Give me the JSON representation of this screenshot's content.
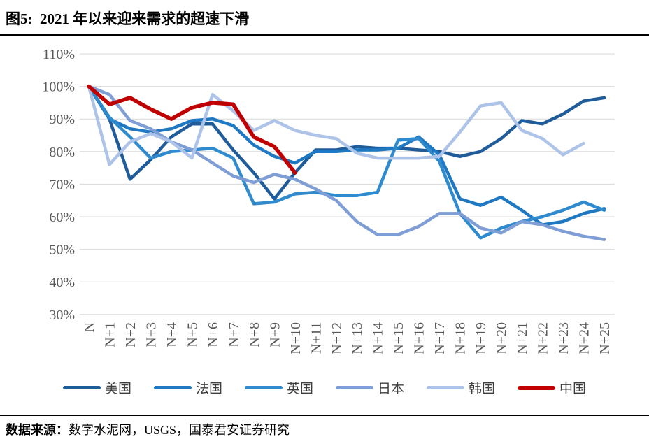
{
  "header": {
    "title": "图5:  2021 年以来迎来需求的超速下滑"
  },
  "footer": {
    "source_label": "数据来源：",
    "source_text": "数字水泥网，USGS，国泰君安证券研究"
  },
  "chart_data": {
    "type": "line",
    "title": "图5:  2021 年以来迎来需求的超速下滑",
    "x": [
      "N",
      "N+1",
      "N+2",
      "N+3",
      "N+4",
      "N+5",
      "N+6",
      "N+7",
      "N+8",
      "N+9",
      "N+10",
      "N+11",
      "N+12",
      "N+13",
      "N+14",
      "N+15",
      "N+16",
      "N+17",
      "N+18",
      "N+19",
      "N+20",
      "N+21",
      "N+22",
      "N+23",
      "N+24",
      "N+25"
    ],
    "xlabel": "",
    "ylabel": "",
    "ylim": [
      30,
      110
    ],
    "yticks": [
      110,
      100,
      90,
      80,
      70,
      60,
      50,
      40,
      30
    ],
    "ytick_format": "percent",
    "grid": true,
    "grid_color": "#d9d9d9",
    "tick_color": "#595959",
    "legend_position": "bottom",
    "series": [
      {
        "name": "美国",
        "color": "#1F5C99",
        "values": [
          100,
          90,
          71.5,
          77.5,
          84.5,
          88.5,
          88.5,
          80.5,
          73.5,
          65.5,
          73.5,
          80.5,
          80.5,
          81.5,
          81,
          81,
          80.5,
          80,
          78.5,
          80,
          84,
          89.5,
          88.5,
          91.5,
          95.5,
          96.5
        ]
      },
      {
        "name": "法国",
        "color": "#1E78C2",
        "values": [
          100,
          90,
          87,
          86,
          87,
          89.5,
          90,
          88,
          82,
          78.5,
          76.5,
          80,
          80,
          80.5,
          80.5,
          81,
          84.5,
          79,
          65.5,
          63.5,
          66,
          62,
          57.5,
          58.5,
          61,
          62.5
        ]
      },
      {
        "name": "英国",
        "color": "#2F8BCE",
        "values": [
          100,
          90.5,
          84.5,
          78,
          80,
          80.5,
          81,
          78,
          64,
          64.5,
          67,
          67.5,
          66.5,
          66.5,
          67.5,
          83.5,
          84,
          77,
          61,
          53.5,
          56.5,
          58.5,
          60,
          62,
          64.5,
          62
        ]
      },
      {
        "name": "日本",
        "color": "#7F9ED6",
        "values": [
          100,
          97.5,
          89.5,
          87,
          83,
          80.5,
          76.5,
          72.5,
          70.5,
          73,
          71.5,
          68.5,
          65,
          58.5,
          54.5,
          54.5,
          57,
          61,
          61,
          56.5,
          55,
          58.5,
          57.5,
          55.5,
          54,
          53
        ]
      },
      {
        "name": "韩国",
        "color": "#AEC3E8",
        "values": [
          100,
          76,
          83,
          85.5,
          83,
          78,
          97.5,
          92.5,
          86.5,
          89.5,
          86.5,
          85,
          84,
          79.5,
          78,
          78,
          78,
          78.5,
          86,
          94,
          95,
          86.5,
          84,
          79,
          82.5
        ]
      },
      {
        "name": "中国",
        "color": "#C00000",
        "stroke_width": 5.5,
        "values": [
          100,
          94.5,
          96.5,
          93,
          90,
          93.5,
          95,
          94.5,
          84.5,
          81.5,
          73.5
        ]
      }
    ]
  }
}
